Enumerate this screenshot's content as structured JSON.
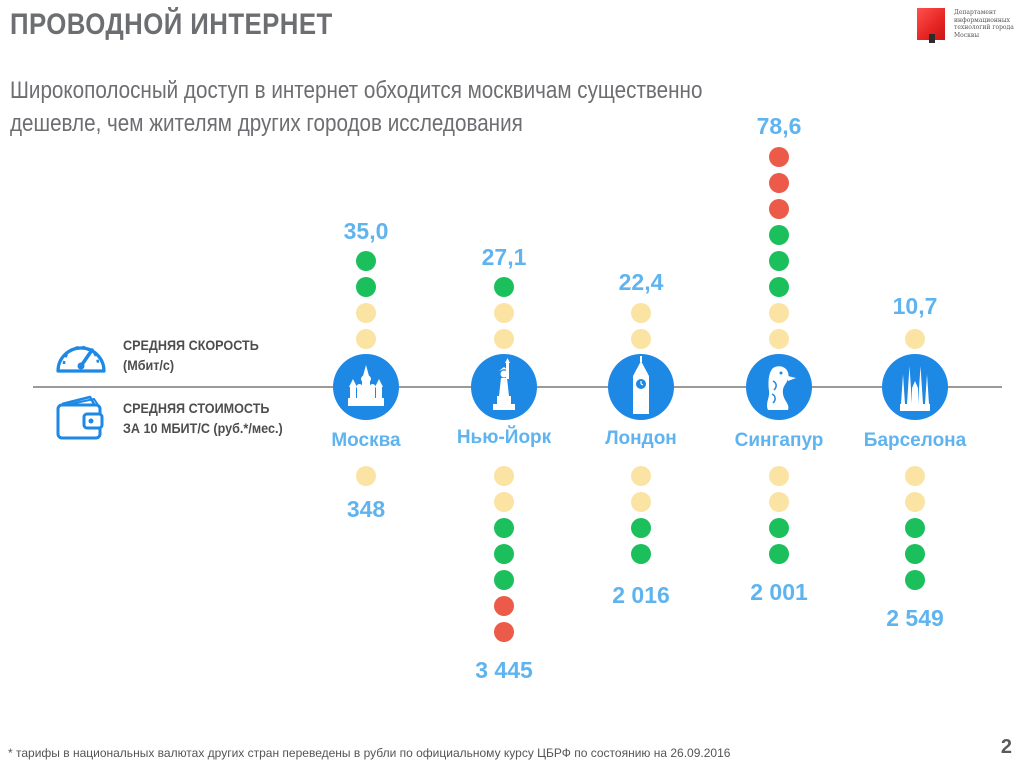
{
  "header": {
    "title": "ПРОВОДНОЙ ИНТЕРНЕТ",
    "subtitle": "Широкополосный доступ в интернет обходится москвичам существенно дешевле, чем жителям других городов исследования"
  },
  "logo": {
    "text": "Департамент информационных технологий города Москвы"
  },
  "legend": {
    "speed_label": "СРЕДНЯЯ СКОРОСТЬ\n(Мбит/с)",
    "speed_icon": "speedometer-icon",
    "cost_label": "СРЕДНЯЯ СТОИМОСТЬ\nЗА 10 МБИТ/С (руб.*/мес.)",
    "cost_icon": "wallet-icon"
  },
  "colors": {
    "green": "#1bbf5c",
    "yellow": "#fbe3a4",
    "red": "#ec5a4a",
    "value_blue": "#5fb4ef",
    "circle_blue": "#1e88e5"
  },
  "chart_data": {
    "type": "table",
    "series": [
      {
        "name": "СРЕДНЯЯ СКОРОСТЬ (Мбит/с)",
        "values": [
          35.0,
          27.1,
          22.4,
          78.6,
          10.7
        ]
      },
      {
        "name": "СРЕДНЯЯ СТОИМОСТЬ ЗА 10 МБИТ/С (руб.*/мес.)",
        "values": [
          348,
          3445,
          2016,
          2001,
          2549
        ]
      }
    ],
    "categories": [
      "Москва",
      "Нью-Йорк",
      "Лондон",
      "Сингапур",
      "Барселона"
    ],
    "cities": [
      {
        "name": "Москва",
        "speed_label": "35,0",
        "cost_label": "348",
        "speed_dots": [
          "green",
          "green",
          "yellow",
          "yellow"
        ],
        "cost_dots": [
          "yellow"
        ]
      },
      {
        "name": "Нью-Йорк",
        "speed_label": "27,1",
        "cost_label": "3 445",
        "speed_dots": [
          "green",
          "yellow",
          "yellow"
        ],
        "cost_dots": [
          "yellow",
          "yellow",
          "green",
          "green",
          "green",
          "red",
          "red"
        ]
      },
      {
        "name": "Лондон",
        "speed_label": "22,4",
        "cost_label": "2 016",
        "speed_dots": [
          "yellow",
          "yellow"
        ],
        "cost_dots": [
          "yellow",
          "yellow",
          "green",
          "green"
        ]
      },
      {
        "name": "Сингапур",
        "speed_label": "78,6",
        "cost_label": "2 001",
        "speed_dots": [
          "red",
          "red",
          "red",
          "green",
          "green",
          "green",
          "yellow",
          "yellow"
        ],
        "cost_dots": [
          "yellow",
          "yellow",
          "green",
          "green"
        ]
      },
      {
        "name": "Барселона",
        "speed_label": "10,7",
        "cost_label": "2 549",
        "speed_dots": [
          "yellow"
        ],
        "cost_dots": [
          "yellow",
          "yellow",
          "green",
          "green",
          "green"
        ]
      }
    ]
  },
  "footer": {
    "footnote": "* тарифы в национальных валютах других стран переведены в рубли по официальному курсу ЦБРФ по состоянию на 26.09.2016",
    "page_number": "2"
  }
}
